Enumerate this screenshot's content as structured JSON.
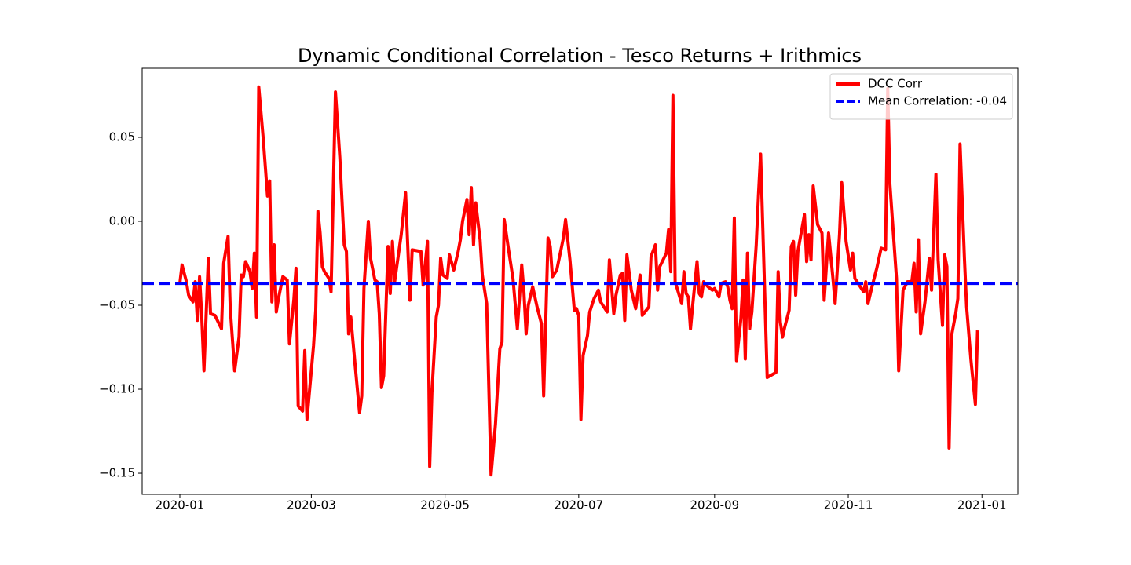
{
  "chart_data": {
    "type": "line",
    "title": "Dynamic Conditional Correlation - Tesco Returns + Irithmics",
    "x": [
      0,
      1,
      3,
      4,
      6,
      7,
      8,
      9,
      10,
      11,
      13,
      14,
      16,
      19,
      20,
      22,
      23,
      25,
      27,
      28,
      29,
      30,
      32,
      33,
      34,
      35,
      36,
      38,
      40,
      41,
      42,
      43,
      44,
      45,
      47,
      49,
      50,
      52,
      53,
      54,
      56,
      57,
      58,
      61,
      62,
      63,
      64,
      65,
      66,
      68,
      69,
      71,
      73,
      75,
      76,
      77,
      78,
      80,
      82,
      83,
      84,
      86,
      87,
      89,
      90,
      91,
      92,
      93,
      95,
      96,
      97,
      98,
      101,
      103,
      105,
      106,
      110,
      111,
      113,
      114,
      115,
      117,
      118,
      119,
      120,
      122,
      123,
      125,
      127,
      128,
      129,
      131,
      132,
      133,
      134,
      135,
      137,
      138,
      140,
      142,
      144,
      146,
      147,
      148,
      150,
      152,
      154,
      156,
      157,
      158,
      159,
      161,
      163,
      165,
      166,
      168,
      169,
      170,
      172,
      175,
      176,
      178,
      180,
      181,
      182,
      183,
      184,
      186,
      187,
      189,
      191,
      192,
      195,
      196,
      198,
      199,
      201,
      202,
      203,
      204,
      206,
      208,
      210,
      211,
      214,
      215,
      217,
      218,
      219,
      222,
      223,
      224,
      225,
      226,
      229,
      230,
      231,
      232,
      233,
      234,
      236,
      237,
      238,
      239,
      241,
      243,
      244,
      246,
      247,
      249,
      250,
      251,
      252,
      253,
      254,
      256,
      257,
      258,
      259,
      260,
      261,
      263,
      264,
      265,
      266,
      268,
      272,
      273,
      274,
      275,
      276,
      278,
      279,
      280,
      281,
      282,
      285,
      286,
      287,
      288,
      289,
      291,
      293,
      294,
      296,
      298,
      299,
      301,
      302,
      304,
      306,
      307,
      308,
      310,
      312,
      313,
      314,
      316,
      318,
      320,
      322,
      323,
      324,
      327,
      328,
      330,
      332,
      334,
      335,
      336,
      337,
      338,
      340,
      342,
      343,
      345,
      346,
      348,
      349,
      350,
      351,
      352,
      354,
      355,
      356,
      358,
      359,
      361,
      363,
      364
    ],
    "series": [
      {
        "name": "DCC Corr",
        "color": "red",
        "values": [
          -0.037,
          -0.026,
          -0.036,
          -0.044,
          -0.048,
          -0.036,
          -0.059,
          -0.033,
          -0.057,
          -0.089,
          -0.022,
          -0.055,
          -0.056,
          -0.064,
          -0.025,
          -0.009,
          -0.052,
          -0.089,
          -0.069,
          -0.032,
          -0.033,
          -0.024,
          -0.03,
          -0.04,
          -0.019,
          -0.057,
          0.08,
          0.05,
          0.015,
          0.024,
          -0.048,
          -0.014,
          -0.054,
          -0.046,
          -0.033,
          -0.035,
          -0.073,
          -0.047,
          -0.028,
          -0.11,
          -0.113,
          -0.077,
          -0.118,
          -0.074,
          -0.053,
          0.006,
          -0.007,
          -0.027,
          -0.03,
          -0.034,
          -0.042,
          0.077,
          0.038,
          -0.014,
          -0.018,
          -0.067,
          -0.057,
          -0.086,
          -0.114,
          -0.104,
          -0.04,
          0.0,
          -0.022,
          -0.035,
          -0.036,
          -0.055,
          -0.099,
          -0.092,
          -0.015,
          -0.043,
          -0.012,
          -0.036,
          -0.008,
          0.017,
          -0.047,
          -0.017,
          -0.018,
          -0.038,
          -0.012,
          -0.146,
          -0.102,
          -0.057,
          -0.05,
          -0.022,
          -0.032,
          -0.034,
          -0.02,
          -0.029,
          -0.018,
          -0.011,
          0.0,
          0.013,
          -0.008,
          0.02,
          -0.014,
          0.011,
          -0.011,
          -0.032,
          -0.049,
          -0.151,
          -0.121,
          -0.076,
          -0.072,
          0.001,
          -0.017,
          -0.034,
          -0.064,
          -0.026,
          -0.042,
          -0.067,
          -0.05,
          -0.039,
          -0.051,
          -0.061,
          -0.104,
          -0.01,
          -0.015,
          -0.033,
          -0.029,
          -0.01,
          0.001,
          -0.023,
          -0.053,
          -0.052,
          -0.056,
          -0.118,
          -0.08,
          -0.068,
          -0.054,
          -0.046,
          -0.041,
          -0.048,
          -0.054,
          -0.023,
          -0.055,
          -0.044,
          -0.032,
          -0.031,
          -0.059,
          -0.02,
          -0.041,
          -0.052,
          -0.032,
          -0.056,
          -0.051,
          -0.021,
          -0.014,
          -0.041,
          -0.027,
          -0.019,
          -0.005,
          -0.03,
          0.075,
          -0.036,
          -0.049,
          -0.03,
          -0.043,
          -0.045,
          -0.064,
          -0.05,
          -0.024,
          -0.043,
          -0.045,
          -0.036,
          -0.039,
          -0.041,
          -0.04,
          -0.045,
          -0.037,
          -0.036,
          -0.039,
          -0.047,
          -0.052,
          0.002,
          -0.083,
          -0.058,
          -0.035,
          -0.082,
          -0.019,
          -0.064,
          -0.054,
          -0.014,
          0.015,
          0.04,
          -0.004,
          -0.093,
          -0.09,
          -0.03,
          -0.06,
          -0.069,
          -0.063,
          -0.053,
          -0.015,
          -0.012,
          -0.044,
          -0.018,
          0.004,
          -0.024,
          -0.008,
          -0.023,
          0.021,
          -0.002,
          -0.007,
          -0.047,
          -0.007,
          -0.034,
          -0.049,
          -0.008,
          0.023,
          -0.012,
          -0.029,
          -0.019,
          -0.034,
          -0.038,
          -0.042,
          -0.036,
          -0.049,
          -0.038,
          -0.028,
          -0.016,
          -0.017,
          0.079,
          0.022,
          -0.034,
          -0.089,
          -0.041,
          -0.036,
          -0.036,
          -0.025,
          -0.054,
          -0.011,
          -0.067,
          -0.048,
          -0.022,
          -0.041,
          0.028,
          -0.023,
          -0.062,
          -0.02,
          -0.027,
          -0.135,
          -0.069,
          -0.055,
          -0.046,
          0.046,
          -0.022,
          -0.051,
          -0.083,
          -0.109,
          -0.065
        ]
      }
    ],
    "hlines": [
      {
        "name": "Mean Correlation: -0.04",
        "value": -0.037,
        "color": "blue",
        "style": "dashed"
      }
    ],
    "xlim": [
      -17.2,
      382.4
    ],
    "xticks": [
      {
        "value": 0,
        "label": "2020-01"
      },
      {
        "value": 60,
        "label": "2020-03"
      },
      {
        "value": 121,
        "label": "2020-05"
      },
      {
        "value": 182,
        "label": "2020-07"
      },
      {
        "value": 244,
        "label": "2020-09"
      },
      {
        "value": 305,
        "label": "2020-11"
      },
      {
        "value": 366,
        "label": "2021-01"
      }
    ],
    "ylim": [
      -0.1626,
      0.0911
    ],
    "yticks": [
      {
        "value": -0.15,
        "label": "−0.15"
      },
      {
        "value": -0.1,
        "label": "−0.10"
      },
      {
        "value": -0.05,
        "label": "−0.05"
      },
      {
        "value": 0,
        "label": "0.00"
      },
      {
        "value": 0.05,
        "label": "0.05"
      }
    ],
    "legend": "upper right"
  }
}
